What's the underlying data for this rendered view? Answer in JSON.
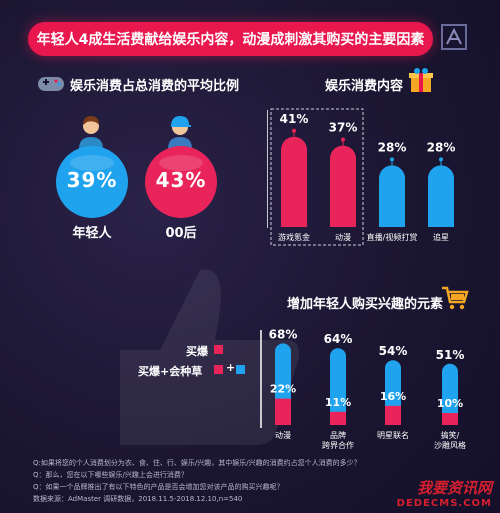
{
  "headline": "年轻人4成生活费献给娱乐内容，动漫成刺激其购买的主要因素",
  "colors": {
    "pink": "#e8245a",
    "blue": "#1fa3ee",
    "banner": "#e8184e",
    "background": "#1a1530"
  },
  "sections": {
    "share": {
      "title": "娱乐消费占总消费的平均比例",
      "groups": [
        {
          "label": "年轻人",
          "value": "39%"
        },
        {
          "label": "00后",
          "value": "43%"
        }
      ]
    },
    "content": {
      "title": "娱乐消费内容"
    },
    "interest": {
      "title": "增加年轻人购买兴趣的元素",
      "legend": [
        "买爆",
        "买爆+会种草"
      ]
    }
  },
  "chart_data": [
    {
      "type": "bar",
      "title": "娱乐消费内容",
      "categories": [
        "游戏氪金",
        "动漫",
        "直播/视频打赏",
        "追星"
      ],
      "values": [
        41,
        37,
        28,
        28
      ],
      "unit": "%",
      "colors": [
        "#e8245a",
        "#e8245a",
        "#1fa3ee",
        "#1fa3ee"
      ],
      "highlighted": [
        "游戏氪金",
        "动漫"
      ]
    },
    {
      "type": "bar",
      "title": "增加年轻人购买兴趣的元素",
      "categories": [
        "动漫",
        "品牌\n跨界合作",
        "明星联名",
        "搞笑/\n沙雕风格"
      ],
      "series": [
        {
          "name": "买爆",
          "values": [
            22,
            11,
            16,
            10
          ],
          "color": "#e8245a"
        },
        {
          "name": "买爆+会种草",
          "values": [
            68,
            64,
            54,
            51
          ],
          "color": "#1fa3ee"
        }
      ],
      "unit": "%"
    }
  ],
  "footer": {
    "q1": "Q:如果将您的个人消费划分为衣、食、住、行、娱乐/兴趣，其中娱乐/兴趣的消费约占您个人消费的多少？",
    "q2": "Q：那么，您在以下哪些娱乐/兴趣上会进行消费？",
    "q3": "Q：如果一个品牌推出了有以下特色的产品是否会增加您对该产品的购买兴趣呢？",
    "source": "数据来源：AdMaster 调研数据，2018.11.5-2018.12.10,n=540"
  },
  "watermark": {
    "title": "我要资讯网",
    "domain": "DEDECMS.COM"
  }
}
